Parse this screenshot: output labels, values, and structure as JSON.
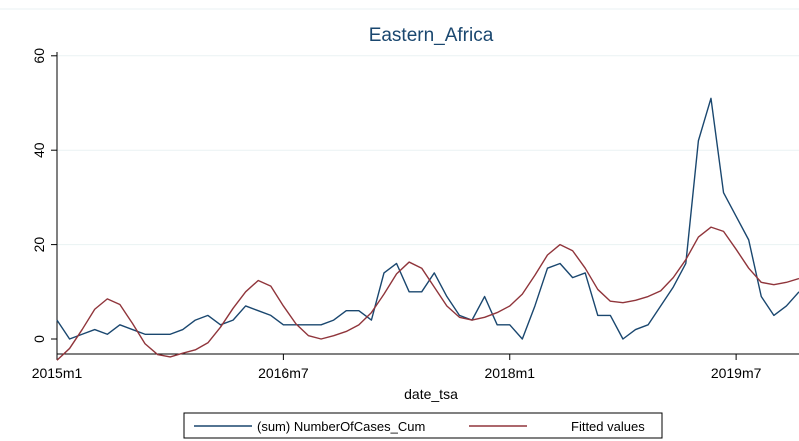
{
  "chart_data": {
    "type": "line",
    "title": "Eastern_Africa",
    "xlabel": "date_tsa",
    "ylabel": "",
    "ylim": [
      0,
      60
    ],
    "yticks": [
      0,
      20,
      40,
      60
    ],
    "xlim": [
      0,
      59
    ],
    "xticks": [
      {
        "index": 0,
        "label": "2015m1"
      },
      {
        "index": 18,
        "label": "2016m7"
      },
      {
        "index": 36,
        "label": "2018m1"
      },
      {
        "index": 54,
        "label": "2019m7"
      }
    ],
    "grid": "horizontal",
    "legend_position": "bottom",
    "series": [
      {
        "name": "(sum) NumberOfCases_Cum",
        "color": "#1a476f",
        "values": [
          4,
          0,
          1,
          2,
          1,
          3,
          2,
          1,
          1,
          1,
          2,
          4,
          5,
          3,
          4,
          7,
          6,
          5,
          3,
          3,
          3,
          3,
          4,
          6,
          6,
          4,
          14,
          16,
          10,
          10,
          14,
          9,
          5,
          4,
          9,
          3,
          3,
          0,
          7,
          15,
          16,
          13,
          14,
          5,
          5,
          0,
          2,
          3,
          7,
          11,
          16,
          42,
          51,
          31,
          26,
          21,
          9,
          5,
          7,
          10
        ]
      },
      {
        "name": "Fitted values",
        "color": "#90353b",
        "values": [
          -4.5,
          -2,
          2,
          6.3,
          8.5,
          7.3,
          3.3,
          -1,
          -3.3,
          -3.8,
          -3,
          -2.3,
          -0.8,
          2.5,
          6.5,
          10,
          12.4,
          11.2,
          7,
          3.2,
          0.7,
          0,
          0.7,
          1.6,
          3,
          5.6,
          9.5,
          13.8,
          16.3,
          15,
          11,
          7,
          4.6,
          4,
          4.6,
          5.6,
          7,
          9.5,
          13.5,
          17.8,
          20,
          18.7,
          15,
          10.5,
          8,
          7.7,
          8.2,
          9,
          10.2,
          13,
          16.8,
          21.6,
          23.7,
          22.8,
          19,
          15,
          12,
          11.5,
          12,
          12.8
        ]
      }
    ]
  }
}
